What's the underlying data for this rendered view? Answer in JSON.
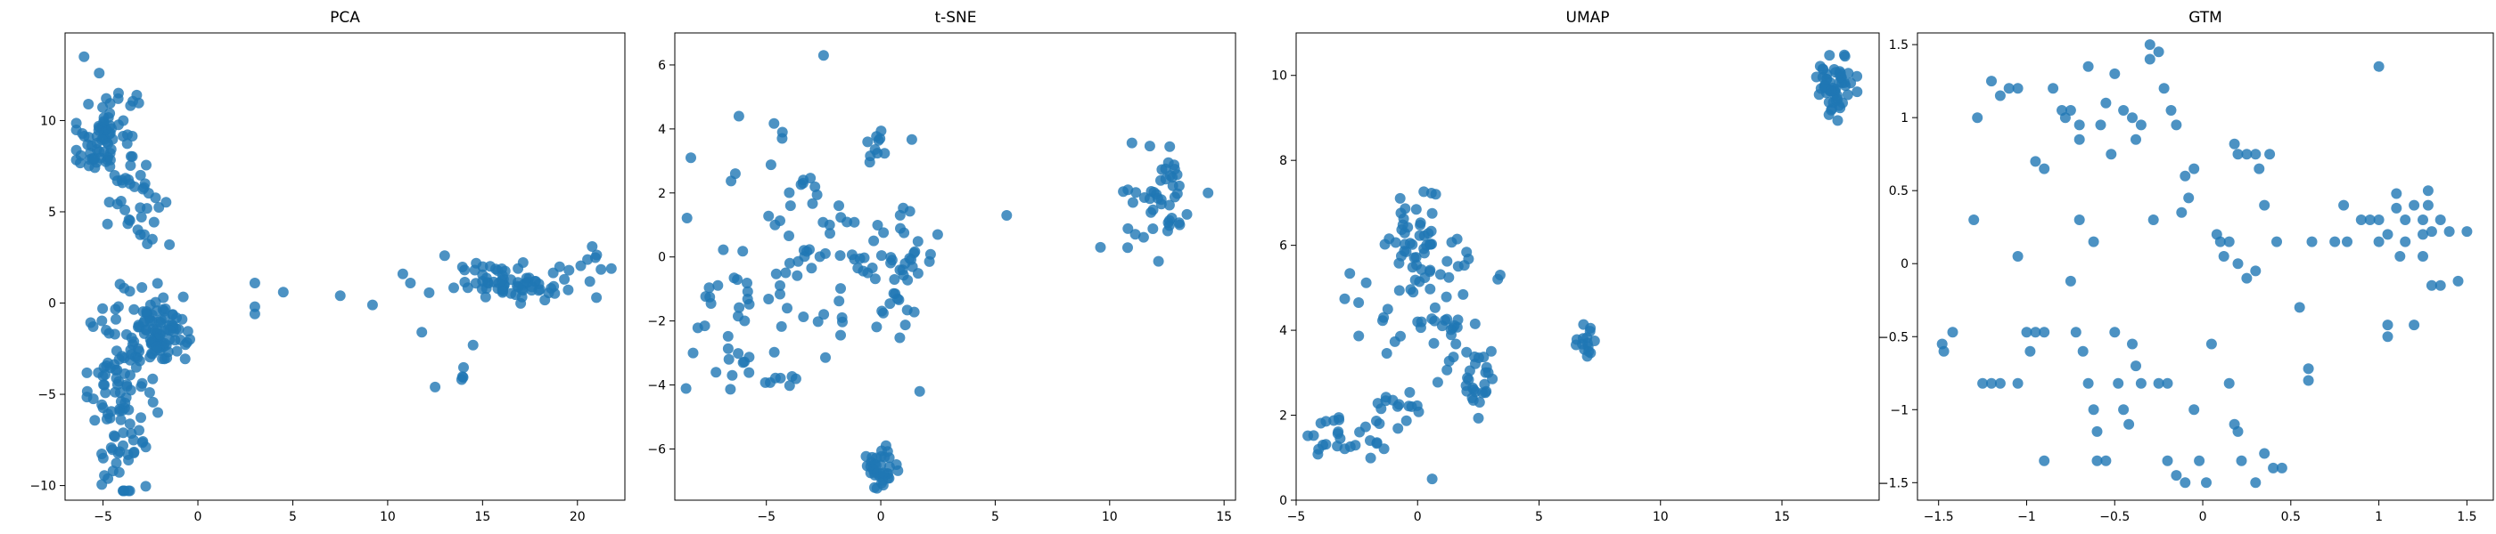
{
  "chart_data": [
    {
      "type": "scatter",
      "title": "PCA",
      "xlabel": "",
      "ylabel": "",
      "xlim": [
        -7.0,
        22.5
      ],
      "ylim": [
        -10.8,
        14.8
      ],
      "xticks": [
        -5,
        0,
        5,
        10,
        15,
        20
      ],
      "yticks": [
        -10,
        -5,
        0,
        5,
        10
      ],
      "grid": false,
      "color": "#1f77b4",
      "series": [
        {
          "clusters": [
            {
              "cx": -4.8,
              "cy": 8.9,
              "sx": 0.8,
              "sy": 1.6,
              "n": 90
            },
            {
              "cx": -2.9,
              "cy": 5.3,
              "sx": 0.6,
              "sy": 1.1,
              "n": 18
            },
            {
              "cx": -4.0,
              "cy": -5.0,
              "sx": 0.9,
              "sy": 2.6,
              "n": 120
            },
            {
              "cx": -1.8,
              "cy": -1.6,
              "sx": 0.6,
              "sy": 0.9,
              "n": 80
            },
            {
              "cx": 16.5,
              "cy": 1.2,
              "sx": 1.5,
              "sy": 0.5,
              "n": 70
            },
            {
              "cx": 20.5,
              "cy": 2.0,
              "sx": 0.6,
              "sy": 0.5,
              "n": 8
            },
            {
              "cx": 13.8,
              "cy": -4.3,
              "sx": 0.6,
              "sy": 0.3,
              "n": 4
            }
          ],
          "points": [
            [
              -6.0,
              13.5
            ],
            [
              -5.2,
              12.6
            ],
            [
              -2.4,
              3.5
            ],
            [
              -1.5,
              3.2
            ],
            [
              3.0,
              1.1
            ],
            [
              3.0,
              -0.2
            ],
            [
              3.0,
              -0.6
            ],
            [
              4.5,
              0.6
            ],
            [
              7.5,
              0.4
            ],
            [
              9.2,
              -0.1
            ],
            [
              10.8,
              1.6
            ],
            [
              11.2,
              1.1
            ],
            [
              11.8,
              -1.6
            ],
            [
              13.0,
              2.6
            ],
            [
              14.5,
              -2.3
            ],
            [
              12.5,
              -4.6
            ],
            [
              15.2,
              0.8
            ]
          ]
        }
      ]
    },
    {
      "type": "scatter",
      "title": "t-SNE",
      "xlabel": "",
      "ylabel": "",
      "xlim": [
        -9.0,
        15.5
      ],
      "ylim": [
        -7.6,
        7.0
      ],
      "xticks": [
        -5,
        0,
        5,
        10,
        15
      ],
      "yticks": [
        -6,
        -4,
        -2,
        0,
        2,
        4,
        6
      ],
      "grid": false,
      "color": "#1f77b4",
      "series": [
        {
          "clusters": [
            {
              "cx": 0.0,
              "cy": -6.6,
              "sx": 0.4,
              "sy": 0.3,
              "n": 35
            },
            {
              "cx": 12.3,
              "cy": 1.8,
              "sx": 0.7,
              "sy": 0.8,
              "n": 45
            },
            {
              "cx": 0.2,
              "cy": -0.3,
              "sx": 1.2,
              "sy": 1.1,
              "n": 60
            },
            {
              "cx": -3.5,
              "cy": 1.0,
              "sx": 1.6,
              "sy": 1.6,
              "n": 45
            },
            {
              "cx": -6.8,
              "cy": -2.0,
              "sx": 1.0,
              "sy": 1.4,
              "n": 30
            },
            {
              "cx": -0.3,
              "cy": 3.4,
              "sx": 0.4,
              "sy": 0.3,
              "n": 10
            },
            {
              "cx": -4.3,
              "cy": -3.8,
              "sx": 0.4,
              "sy": 0.15,
              "n": 6
            }
          ],
          "points": [
            [
              -2.5,
              6.3
            ],
            [
              -6.2,
              4.4
            ],
            [
              -8.3,
              3.1
            ],
            [
              5.5,
              1.3
            ],
            [
              9.6,
              0.3
            ],
            [
              10.8,
              2.1
            ],
            [
              14.3,
              2.0
            ],
            [
              -4.3,
              3.9
            ],
            [
              -8.2,
              -3.0
            ],
            [
              -7.2,
              -3.6
            ]
          ]
        }
      ]
    },
    {
      "type": "scatter",
      "title": "UMAP",
      "xlabel": "",
      "ylabel": "",
      "xlim": [
        -5.0,
        19.0
      ],
      "ylim": [
        0.0,
        11.0
      ],
      "xticks": [
        -5,
        0,
        5,
        10,
        15
      ],
      "yticks": [
        0,
        2,
        4,
        6,
        8,
        10
      ],
      "grid": false,
      "color": "#1f77b4",
      "series": [
        {
          "clusters": [
            {
              "cx": 17.2,
              "cy": 9.8,
              "sx": 0.4,
              "sy": 0.35,
              "n": 55
            },
            {
              "cx": 0.0,
              "cy": 6.0,
              "sx": 0.5,
              "sy": 0.6,
              "n": 45
            },
            {
              "cx": 1.0,
              "cy": 4.2,
              "sx": 0.8,
              "sy": 0.7,
              "n": 30
            },
            {
              "cx": 2.5,
              "cy": 2.8,
              "sx": 0.4,
              "sy": 0.4,
              "n": 25
            },
            {
              "cx": -2.8,
              "cy": 1.5,
              "sx": 1.0,
              "sy": 0.25,
              "n": 25
            },
            {
              "cx": -0.8,
              "cy": 2.2,
              "sx": 0.6,
              "sy": 0.3,
              "n": 15
            },
            {
              "cx": 6.9,
              "cy": 3.7,
              "sx": 0.2,
              "sy": 0.25,
              "n": 15
            },
            {
              "cx": -1.2,
              "cy": 5.0,
              "sx": 0.8,
              "sy": 0.8,
              "n": 12
            },
            {
              "cx": 1.7,
              "cy": 5.7,
              "sx": 0.3,
              "sy": 0.3,
              "n": 6
            }
          ],
          "points": [
            [
              0.6,
              0.5
            ],
            [
              3.3,
              5.2
            ],
            [
              3.4,
              5.3
            ],
            [
              -3.9,
              1.3
            ],
            [
              -1.4,
              4.3
            ]
          ]
        }
      ]
    },
    {
      "type": "scatter",
      "title": "GTM",
      "xlabel": "",
      "ylabel": "",
      "xlim": [
        -1.62,
        1.65
      ],
      "ylim": [
        -1.62,
        1.58
      ],
      "xticks": [
        -1.5,
        -1.0,
        -0.5,
        0.0,
        0.5,
        1.0,
        1.5
      ],
      "yticks": [
        -1.5,
        -1.0,
        -0.5,
        0.0,
        0.5,
        1.0,
        1.5
      ],
      "grid": false,
      "color": "#1f77b4",
      "series": [
        {
          "clusters": [],
          "points": [
            [
              -1.48,
              -0.55
            ],
            [
              -1.47,
              -0.6
            ],
            [
              -1.42,
              -0.47
            ],
            [
              -1.3,
              0.3
            ],
            [
              -1.28,
              1.0
            ],
            [
              -1.2,
              1.25
            ],
            [
              -1.15,
              1.15
            ],
            [
              -1.1,
              1.2
            ],
            [
              -1.05,
              1.2
            ],
            [
              -1.25,
              -0.82
            ],
            [
              -1.2,
              -0.82
            ],
            [
              -1.15,
              -0.82
            ],
            [
              -1.05,
              0.05
            ],
            [
              -1.0,
              -0.47
            ],
            [
              -0.95,
              -0.47
            ],
            [
              -0.9,
              -0.47
            ],
            [
              -0.95,
              0.7
            ],
            [
              -0.9,
              0.65
            ],
            [
              -1.05,
              -0.82
            ],
            [
              -0.98,
              -0.6
            ],
            [
              -0.9,
              -1.35
            ],
            [
              -0.85,
              1.2
            ],
            [
              -0.8,
              1.05
            ],
            [
              -0.78,
              1.0
            ],
            [
              -0.75,
              1.05
            ],
            [
              -0.7,
              0.95
            ],
            [
              -0.75,
              -0.12
            ],
            [
              -0.7,
              0.3
            ],
            [
              -0.72,
              -0.47
            ],
            [
              -0.68,
              -0.6
            ],
            [
              -0.65,
              -0.82
            ],
            [
              -0.62,
              0.15
            ],
            [
              -0.62,
              -1.0
            ],
            [
              -0.6,
              -1.15
            ],
            [
              -0.58,
              0.95
            ],
            [
              -0.55,
              1.1
            ],
            [
              -0.5,
              1.3
            ],
            [
              -0.52,
              0.75
            ],
            [
              -0.5,
              -0.47
            ],
            [
              -0.48,
              -0.82
            ],
            [
              -0.45,
              -1.0
            ],
            [
              -0.42,
              -1.1
            ],
            [
              -0.45,
              1.05
            ],
            [
              -0.4,
              1.0
            ],
            [
              -0.38,
              0.85
            ],
            [
              -0.35,
              0.95
            ],
            [
              -0.4,
              -0.55
            ],
            [
              -0.38,
              -0.7
            ],
            [
              -0.35,
              -0.82
            ],
            [
              -0.3,
              1.4
            ],
            [
              -0.25,
              1.45
            ],
            [
              -0.28,
              0.3
            ],
            [
              -0.25,
              -0.82
            ],
            [
              -0.2,
              -0.82
            ],
            [
              -0.22,
              1.2
            ],
            [
              -0.18,
              1.05
            ],
            [
              -0.15,
              0.95
            ],
            [
              -0.2,
              -1.35
            ],
            [
              -0.15,
              -1.45
            ],
            [
              -0.1,
              -1.5
            ],
            [
              -0.1,
              0.6
            ],
            [
              -0.05,
              0.65
            ],
            [
              -0.12,
              0.35
            ],
            [
              -0.08,
              0.45
            ],
            [
              -0.05,
              -1.0
            ],
            [
              -0.02,
              -1.35
            ],
            [
              0.02,
              -1.5
            ],
            [
              -0.55,
              -1.35
            ],
            [
              -0.6,
              -1.35
            ],
            [
              -0.7,
              0.85
            ],
            [
              -0.65,
              1.35
            ],
            [
              -0.3,
              1.5
            ],
            [
              0.05,
              -0.55
            ],
            [
              0.08,
              0.2
            ],
            [
              0.1,
              0.15
            ],
            [
              0.12,
              0.05
            ],
            [
              0.15,
              -0.82
            ],
            [
              0.18,
              -1.1
            ],
            [
              0.2,
              -1.15
            ],
            [
              0.22,
              -1.35
            ],
            [
              0.2,
              0.75
            ],
            [
              0.25,
              0.75
            ],
            [
              0.3,
              0.75
            ],
            [
              0.18,
              0.82
            ],
            [
              0.15,
              0.15
            ],
            [
              0.2,
              0.0
            ],
            [
              0.25,
              -0.1
            ],
            [
              0.3,
              -0.05
            ],
            [
              0.3,
              -1.5
            ],
            [
              0.35,
              -1.3
            ],
            [
              0.4,
              -1.4
            ],
            [
              0.45,
              -1.4
            ],
            [
              0.32,
              0.65
            ],
            [
              0.38,
              0.75
            ],
            [
              0.35,
              0.4
            ],
            [
              0.42,
              0.15
            ],
            [
              0.55,
              -0.3
            ],
            [
              0.6,
              -0.72
            ],
            [
              0.6,
              -0.8
            ],
            [
              0.62,
              0.15
            ],
            [
              0.75,
              0.15
            ],
            [
              0.82,
              0.15
            ],
            [
              0.8,
              0.4
            ],
            [
              0.9,
              0.3
            ],
            [
              0.95,
              0.3
            ],
            [
              1.0,
              1.35
            ],
            [
              1.0,
              0.15
            ],
            [
              1.05,
              0.2
            ],
            [
              1.05,
              -0.5
            ],
            [
              1.05,
              -0.42
            ],
            [
              1.1,
              0.38
            ],
            [
              1.1,
              0.48
            ],
            [
              1.15,
              0.3
            ],
            [
              1.15,
              0.15
            ],
            [
              1.12,
              0.05
            ],
            [
              1.2,
              0.4
            ],
            [
              1.2,
              -0.42
            ],
            [
              1.25,
              0.3
            ],
            [
              1.25,
              0.2
            ],
            [
              1.28,
              0.5
            ],
            [
              1.28,
              0.4
            ],
            [
              1.3,
              0.22
            ],
            [
              1.35,
              0.3
            ],
            [
              1.35,
              -0.15
            ],
            [
              1.4,
              0.22
            ],
            [
              1.45,
              -0.12
            ],
            [
              1.5,
              0.22
            ],
            [
              1.25,
              0.05
            ],
            [
              1.3,
              -0.15
            ],
            [
              1.0,
              0.3
            ]
          ]
        }
      ]
    }
  ]
}
